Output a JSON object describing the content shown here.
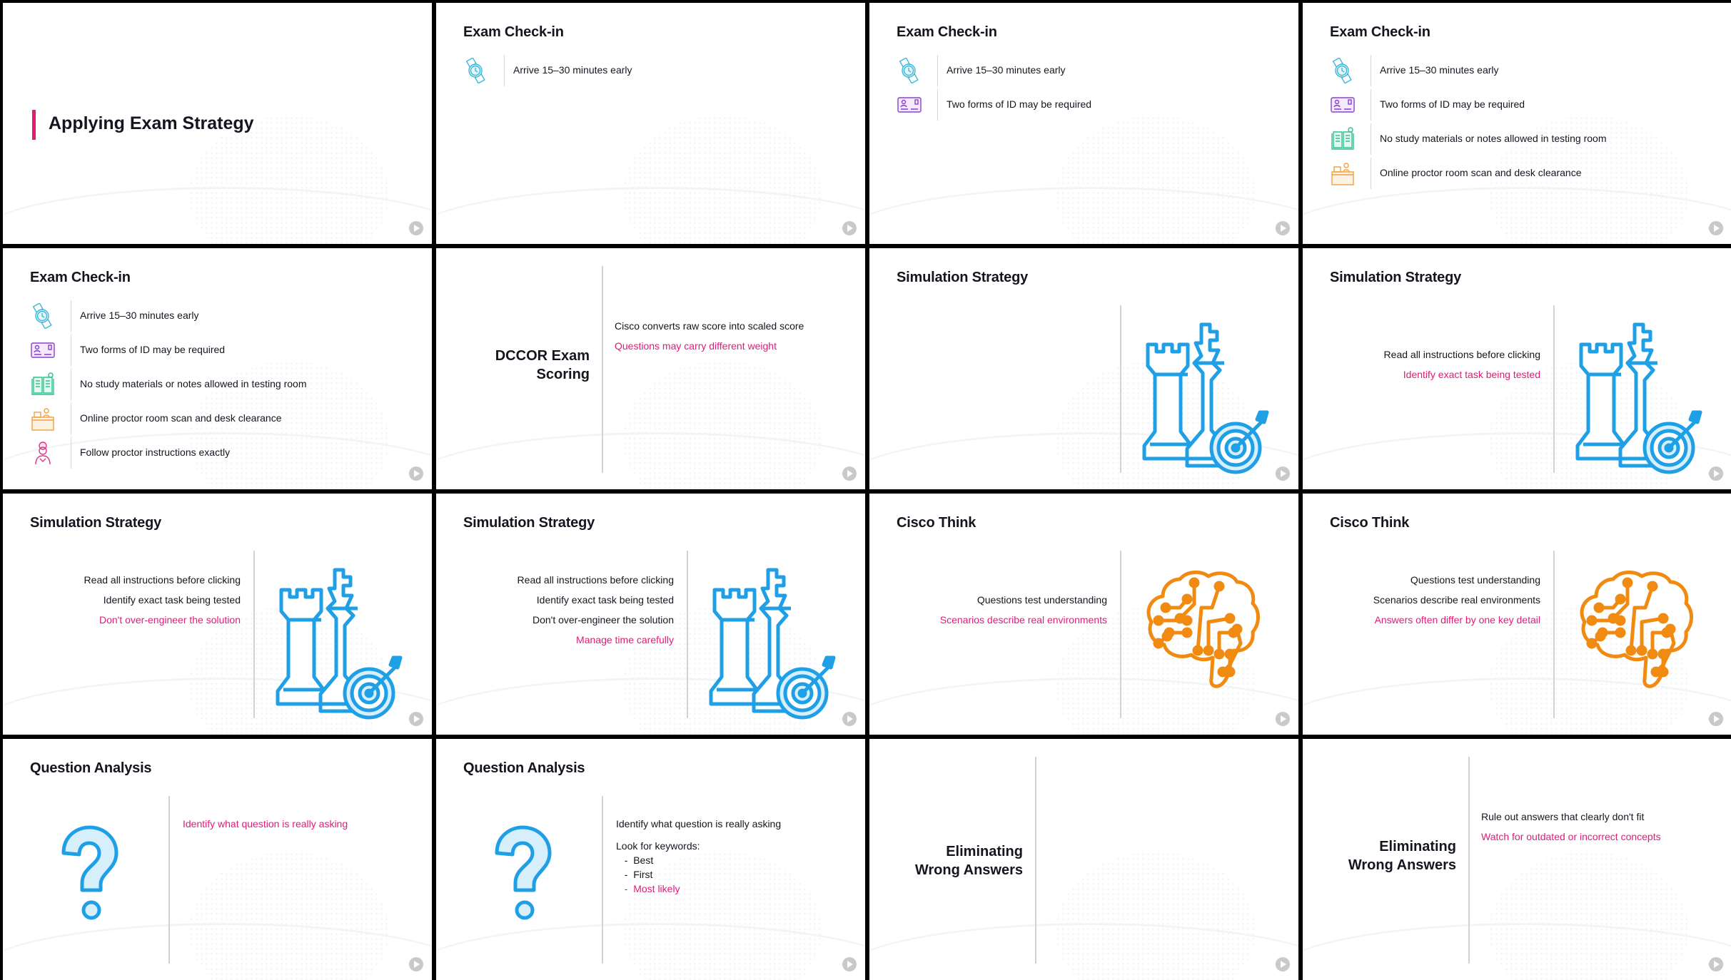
{
  "colors": {
    "accent": "#e3197b",
    "text": "#15151f",
    "chess": "#1e9fe6",
    "brain": "#f08a10",
    "question": "#1e9fe6"
  },
  "slides": [
    {
      "type": "title",
      "title": "Applying Exam Strategy"
    },
    {
      "type": "list",
      "title": "Exam Check-in",
      "items": [
        {
          "icon": "watch-icon",
          "text": "Arrive 15–30 minutes early"
        }
      ]
    },
    {
      "type": "list",
      "title": "Exam Check-in",
      "items": [
        {
          "icon": "watch-icon",
          "text": "Arrive 15–30 minutes early"
        },
        {
          "icon": "id-card-icon",
          "text": "Two forms of ID may be required"
        }
      ]
    },
    {
      "type": "list",
      "title": "Exam Check-in",
      "items": [
        {
          "icon": "watch-icon",
          "text": "Arrive 15–30 minutes early"
        },
        {
          "icon": "id-card-icon",
          "text": "Two forms of ID may be required"
        },
        {
          "icon": "book-icon",
          "text": "No study materials or notes allowed in testing room"
        },
        {
          "icon": "desk-icon",
          "text": "Online proctor room scan and desk clearance"
        }
      ]
    },
    {
      "type": "list",
      "title": "Exam Check-in",
      "items": [
        {
          "icon": "watch-icon",
          "text": "Arrive 15–30 minutes early"
        },
        {
          "icon": "id-card-icon",
          "text": "Two forms of ID may be required"
        },
        {
          "icon": "book-icon",
          "text": "No study materials or notes allowed in testing room"
        },
        {
          "icon": "desk-icon",
          "text": "Online proctor room scan and desk clearance"
        },
        {
          "icon": "proctor-icon",
          "text": "Follow proctor instructions exactly"
        }
      ]
    },
    {
      "type": "split",
      "title": "DCCOR Exam Scoring",
      "lines": [
        {
          "text": "Cisco converts raw score into scaled score"
        },
        {
          "text": "Questions may carry different weight",
          "highlight": true
        }
      ]
    },
    {
      "type": "picture",
      "title": "Simulation Strategy",
      "picture": "chess-icon",
      "lines": []
    },
    {
      "type": "picture",
      "title": "Simulation Strategy",
      "picture": "chess-icon",
      "lines": [
        {
          "text": "Read all instructions before clicking"
        },
        {
          "text": "Identify exact task being tested",
          "highlight": true
        }
      ]
    },
    {
      "type": "picture",
      "title": "Simulation Strategy",
      "picture": "chess-icon",
      "lines": [
        {
          "text": "Read all instructions before clicking"
        },
        {
          "text": "Identify exact task being tested"
        },
        {
          "text": "Don't over-engineer the solution",
          "highlight": true
        }
      ]
    },
    {
      "type": "picture",
      "title": "Simulation Strategy",
      "picture": "chess-icon",
      "lines": [
        {
          "text": "Read all instructions before clicking"
        },
        {
          "text": "Identify exact task being tested"
        },
        {
          "text": "Don't over-engineer the solution"
        },
        {
          "text": "Manage time carefully",
          "highlight": true
        }
      ]
    },
    {
      "type": "picture",
      "title": "Cisco Think",
      "picture": "brain-icon",
      "lines": [
        {
          "text": "Questions test understanding"
        },
        {
          "text": "Scenarios describe real environments",
          "highlight": true
        }
      ]
    },
    {
      "type": "picture",
      "title": "Cisco Think",
      "picture": "brain-icon",
      "lines": [
        {
          "text": "Questions test understanding"
        },
        {
          "text": "Scenarios describe real environments"
        },
        {
          "text": "Answers often differ by one key detail",
          "highlight": true
        }
      ]
    },
    {
      "type": "question",
      "title": "Question Analysis",
      "lines": [
        {
          "text": "Identify what question is really asking",
          "highlight": true
        }
      ]
    },
    {
      "type": "question",
      "title": "Question Analysis",
      "lines": [
        {
          "text": "Identify what question is really asking"
        },
        {
          "text": "Look for keywords:"
        },
        {
          "text": "  -  Best",
          "sub": true
        },
        {
          "text": "  -  First",
          "sub": true
        },
        {
          "text": "  -  Most likely",
          "sub": true,
          "highlight": true
        }
      ]
    },
    {
      "type": "split",
      "title": "Eliminating Wrong Answers",
      "lines": []
    },
    {
      "type": "split",
      "title": "Eliminating Wrong Answers",
      "lines": [
        {
          "text": "Rule out answers that clearly don't fit"
        },
        {
          "text": "Watch for outdated or incorrect concepts",
          "highlight": true
        }
      ]
    }
  ]
}
